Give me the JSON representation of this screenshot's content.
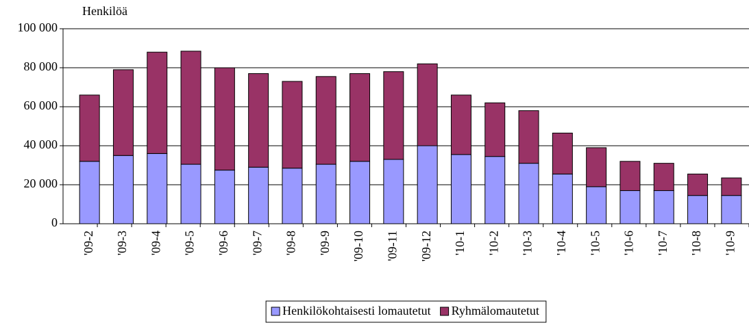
{
  "chart_data": {
    "type": "stacked_bar",
    "title": "Henkilöä",
    "categories": [
      "'09-2",
      "'09-3",
      "'09-4",
      "'09-5",
      "'09-6",
      "'09-7",
      "'09-8",
      "'09-9",
      "'09-10",
      "'09-11",
      "'09-12",
      "'10-1",
      "'10-2",
      "'10-3",
      "'10-4",
      "'10-5",
      "'10-6",
      "'10-7",
      "'10-8",
      "'10-9"
    ],
    "series": [
      {
        "name": "Henkilökohtaisesti lomautetut",
        "color": "#9999ff",
        "values": [
          32000,
          35000,
          36000,
          30500,
          27500,
          29000,
          28500,
          30500,
          32000,
          33000,
          40000,
          35500,
          34500,
          31000,
          25500,
          19000,
          17000,
          17000,
          14500,
          14500
        ]
      },
      {
        "name": "Ryhmälomautetut",
        "color": "#993366",
        "values": [
          34000,
          44000,
          52000,
          58000,
          52500,
          48000,
          44500,
          45000,
          45000,
          45000,
          42000,
          30500,
          27500,
          27000,
          21000,
          20000,
          15000,
          14000,
          11000,
          9000
        ]
      }
    ],
    "ylim": [
      0,
      100000
    ],
    "yticks": [
      0,
      {
        "value": 20000,
        "label": "20 000"
      },
      {
        "value": 40000,
        "label": "40 000"
      },
      {
        "value": 60000,
        "label": "60 000"
      },
      {
        "value": 80000,
        "label": "80 000"
      },
      {
        "value": 100000,
        "label": "100 000"
      }
    ],
    "grid": true,
    "legend": "bottom"
  }
}
